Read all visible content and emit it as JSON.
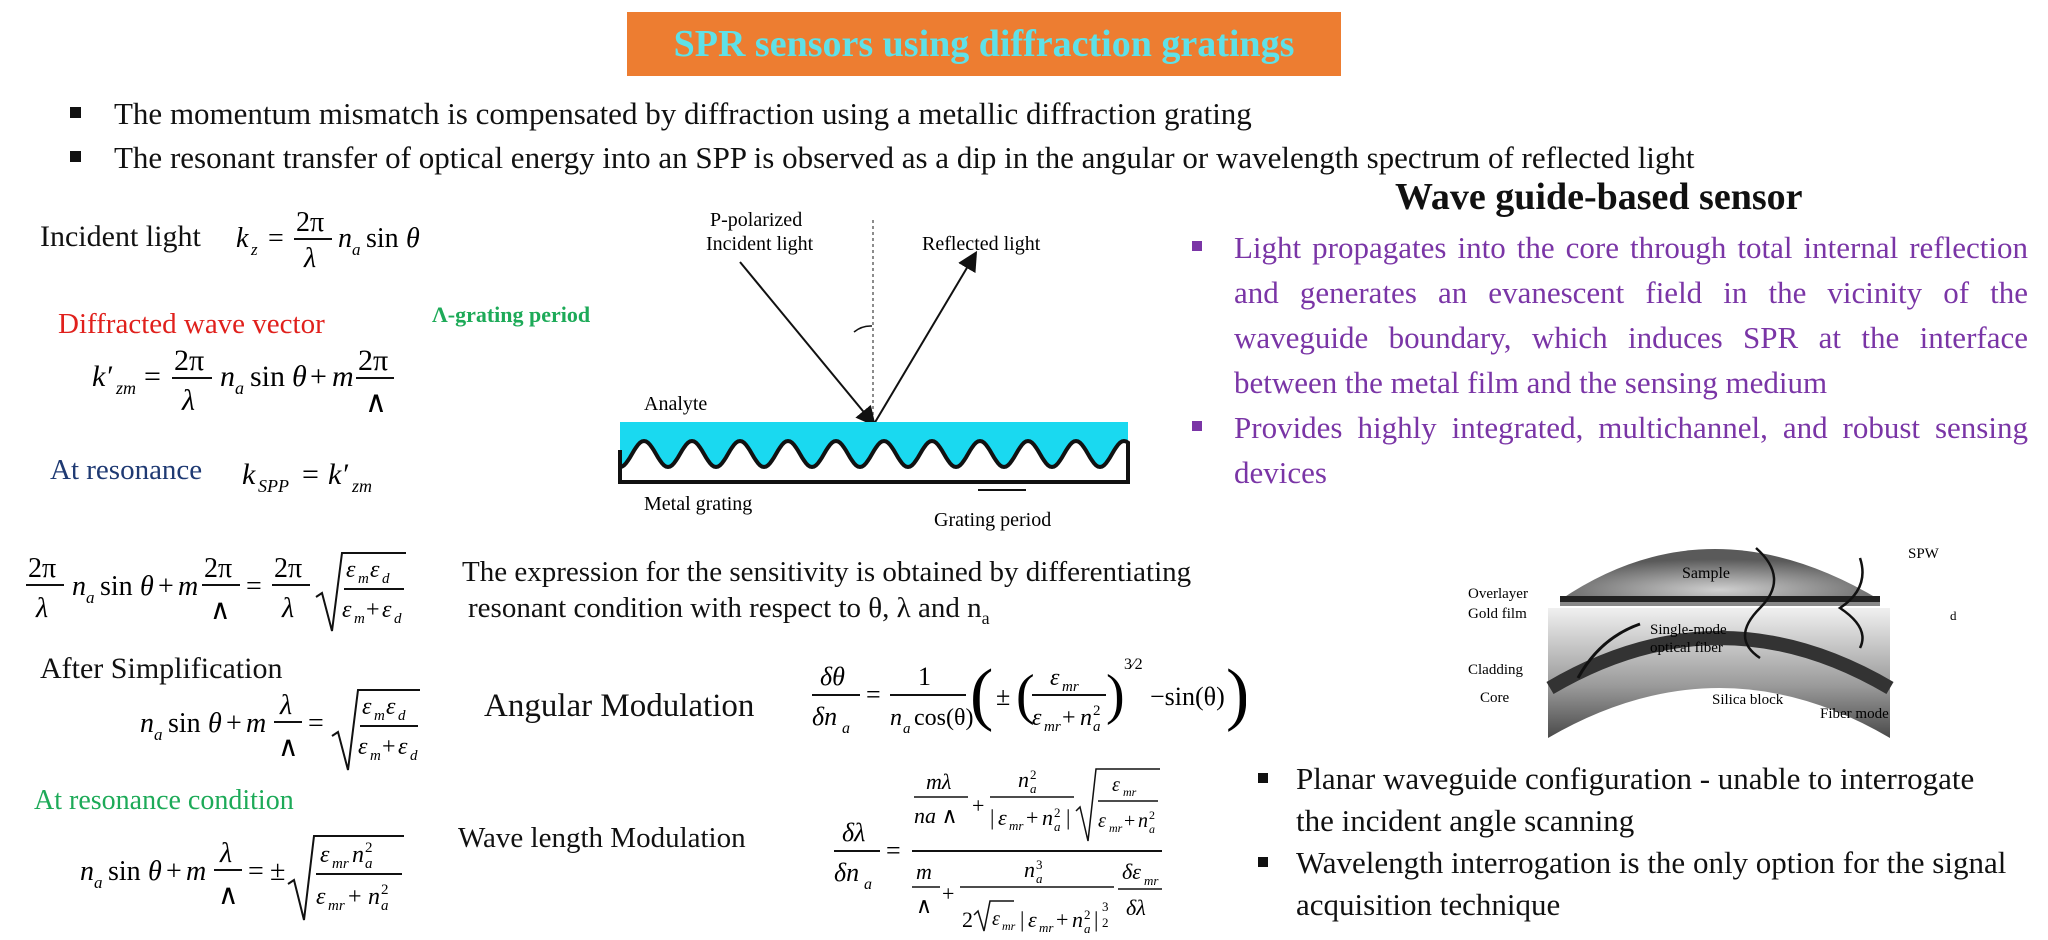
{
  "title": "SPR sensors using diffraction gratings",
  "bullets": [
    "The momentum mismatch is compensated by diffraction using a metallic diffraction grating",
    "The resonant transfer of optical energy into an SPP is observed as a dip in the angular or wavelength spectrum of reflected light"
  ],
  "left": {
    "incident_label": "Incident light",
    "diffracted_label": "Diffracted wave vector",
    "resonance_label": "At resonance",
    "simplification_label": "After Simplification",
    "resonance_condition_label": "At resonance condition",
    "grating_period_label": "Λ-grating period"
  },
  "diagram": {
    "p_polarized": "P-polarized",
    "incident_light": "Incident light",
    "reflected_light": "Reflected light",
    "analyte": "Analyte",
    "metal_grating": "Metal grating",
    "grating_period": "Grating period",
    "colors": {
      "analyte": "#1ad9f0",
      "grating": "#111111"
    }
  },
  "sensitivity": {
    "line1": "The expression for the sensitivity is obtained by differentiating",
    "line2": "resonant condition with respect to θ, λ and n",
    "line2_sub": "a",
    "angular_label": "Angular Modulation",
    "wavelength_label": "Wave length Modulation"
  },
  "waveguide": {
    "title": "Wave guide-based sensor",
    "items": [
      "Light propagates into the core through total internal reflection and generates an evanescent field in the vicinity of the waveguide boundary, which induces SPR at the interface between the metal film and the sensing medium",
      "Provides highly integrated, multichannel, and robust sensing devices"
    ],
    "figure_labels": {
      "sample": "Sample",
      "spw": "SPW",
      "overlayer": "Overlayer",
      "gold_film": "Gold film",
      "single_mode": "Single-mode",
      "optical_fiber": "optical fiber",
      "cladding": "Cladding",
      "core": "Core",
      "silica_block": "Silica block",
      "fiber_mode": "Fiber mode",
      "dg": "d"
    },
    "planar_items": [
      "Planar waveguide configuration - unable to interrogate the incident angle scanning",
      "Wavelength interrogation is the only option for the signal acquisition technique"
    ]
  }
}
